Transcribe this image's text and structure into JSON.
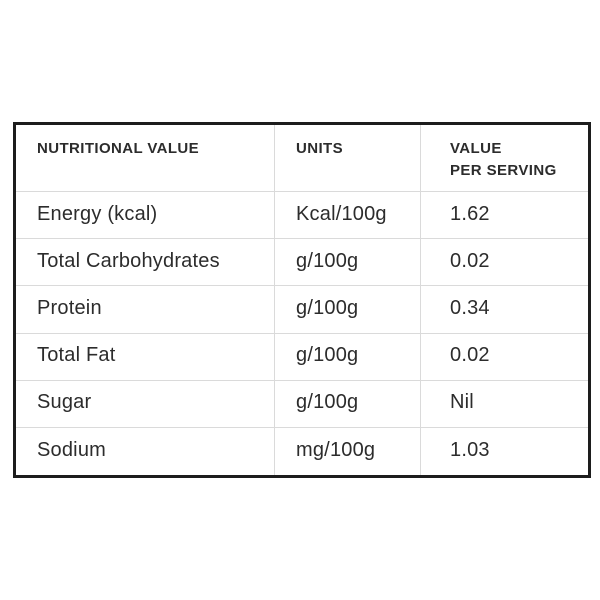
{
  "table": {
    "columns": [
      {
        "label": "NUTRITIONAL VALUE"
      },
      {
        "label": "UNITS"
      },
      {
        "label": "VALUE\nPER SERVING"
      }
    ],
    "rows": [
      {
        "nutrient": "Energy (kcal)",
        "units": "Kcal/100g",
        "value": "1.62"
      },
      {
        "nutrient": "Total Carbohydrates",
        "units": "g/100g",
        "value": "0.02"
      },
      {
        "nutrient": "Protein",
        "units": "g/100g",
        "value": "0.34"
      },
      {
        "nutrient": "Total Fat",
        "units": "g/100g",
        "value": "0.02"
      },
      {
        "nutrient": "Sugar",
        "units": "g/100g",
        "value": "Nil"
      },
      {
        "nutrient": "Sodium",
        "units": "mg/100g",
        "value": "1.03"
      }
    ]
  },
  "colors": {
    "text": "#2c2c2c",
    "outer_border": "#1d1d1d",
    "grid_line": "#dadada",
    "background": "#ffffff"
  }
}
